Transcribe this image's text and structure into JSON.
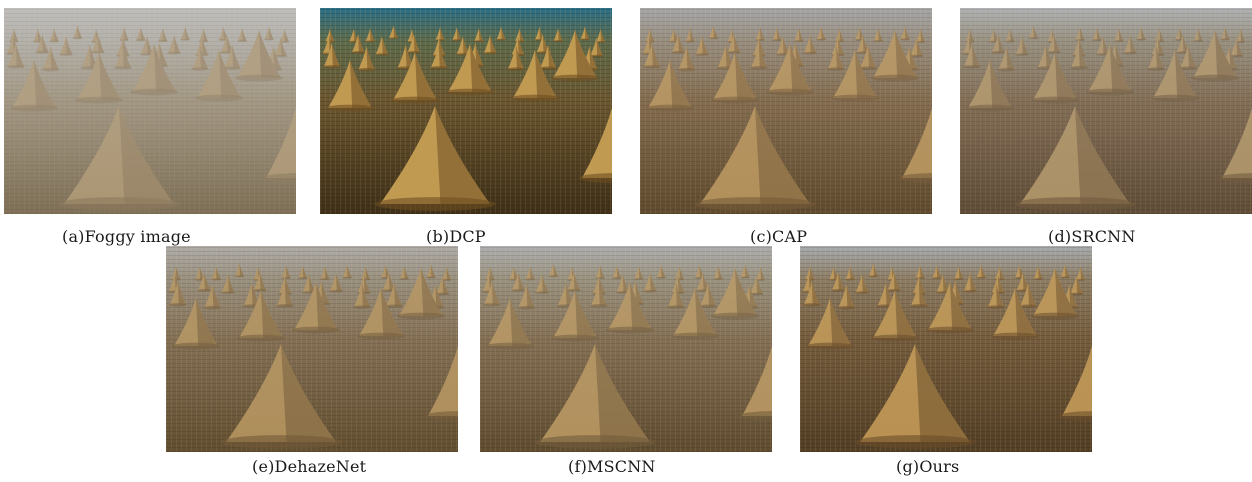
{
  "figure": {
    "panels": [
      {
        "id": "a",
        "caption": "(a)Foggy image",
        "style": "foggy",
        "tone": {
          "sky": "#b9b6b2",
          "far": "#a7a39a",
          "mid": "#8f7f63",
          "near": "#6b5a3c",
          "haze": [
            0.35,
            0.35,
            0.22
          ],
          "texture": 0.55,
          "stack": "#a48a60",
          "stackShade": "#7b6443"
        }
      },
      {
        "id": "b",
        "caption": "(b)DCP",
        "style": "dcp",
        "tone": {
          "sky": "#2a6f88",
          "far": "#5d6b4c",
          "mid": "#6a5630",
          "near": "#3f3018",
          "haze": [
            0.0,
            0.0,
            0.0
          ],
          "texture": 0.95,
          "stack": "#c19a52",
          "stackShade": "#6e4f22"
        }
      },
      {
        "id": "c",
        "caption": "(c)CAP",
        "style": "cap",
        "tone": {
          "sky": "#9c9c9e",
          "far": "#8d8170",
          "mid": "#7a6040",
          "near": "#5a4426",
          "haze": [
            0.2,
            0.12,
            0.06
          ],
          "texture": 0.8,
          "stack": "#b18d55",
          "stackShade": "#6f5330"
        }
      },
      {
        "id": "d",
        "caption": "(d)SRCNN",
        "style": "srcnn",
        "tone": {
          "sky": "#a7a9ac",
          "far": "#8c8370",
          "mid": "#776046",
          "near": "#5a4630",
          "haze": [
            0.22,
            0.14,
            0.06
          ],
          "texture": 0.75,
          "stack": "#a98d60",
          "stackShade": "#6b5436"
        }
      },
      {
        "id": "e",
        "caption": "(e)DehazeNet",
        "style": "dehazenet",
        "tone": {
          "sky": "#a7a4a0",
          "far": "#908571",
          "mid": "#7b6446",
          "near": "#5c4829",
          "haze": [
            0.18,
            0.12,
            0.05
          ],
          "texture": 0.8,
          "stack": "#ad8c56",
          "stackShade": "#6d5431"
        }
      },
      {
        "id": "f",
        "caption": "(f)MSCNN",
        "style": "mscnn",
        "tone": {
          "sky": "#a6a6a8",
          "far": "#8f8670",
          "mid": "#7b6446",
          "near": "#5a4629",
          "haze": [
            0.2,
            0.12,
            0.05
          ],
          "texture": 0.8,
          "stack": "#b08e58",
          "stackShade": "#6d5533"
        }
      },
      {
        "id": "g",
        "caption": "(g)Ours",
        "style": "ours",
        "tone": {
          "sky": "#a1a6ab",
          "far": "#857459",
          "mid": "#6f5535",
          "near": "#503c22",
          "haze": [
            0.12,
            0.06,
            0.02
          ],
          "texture": 0.9,
          "stack": "#b99150",
          "stackShade": "#674a24"
        }
      }
    ]
  }
}
